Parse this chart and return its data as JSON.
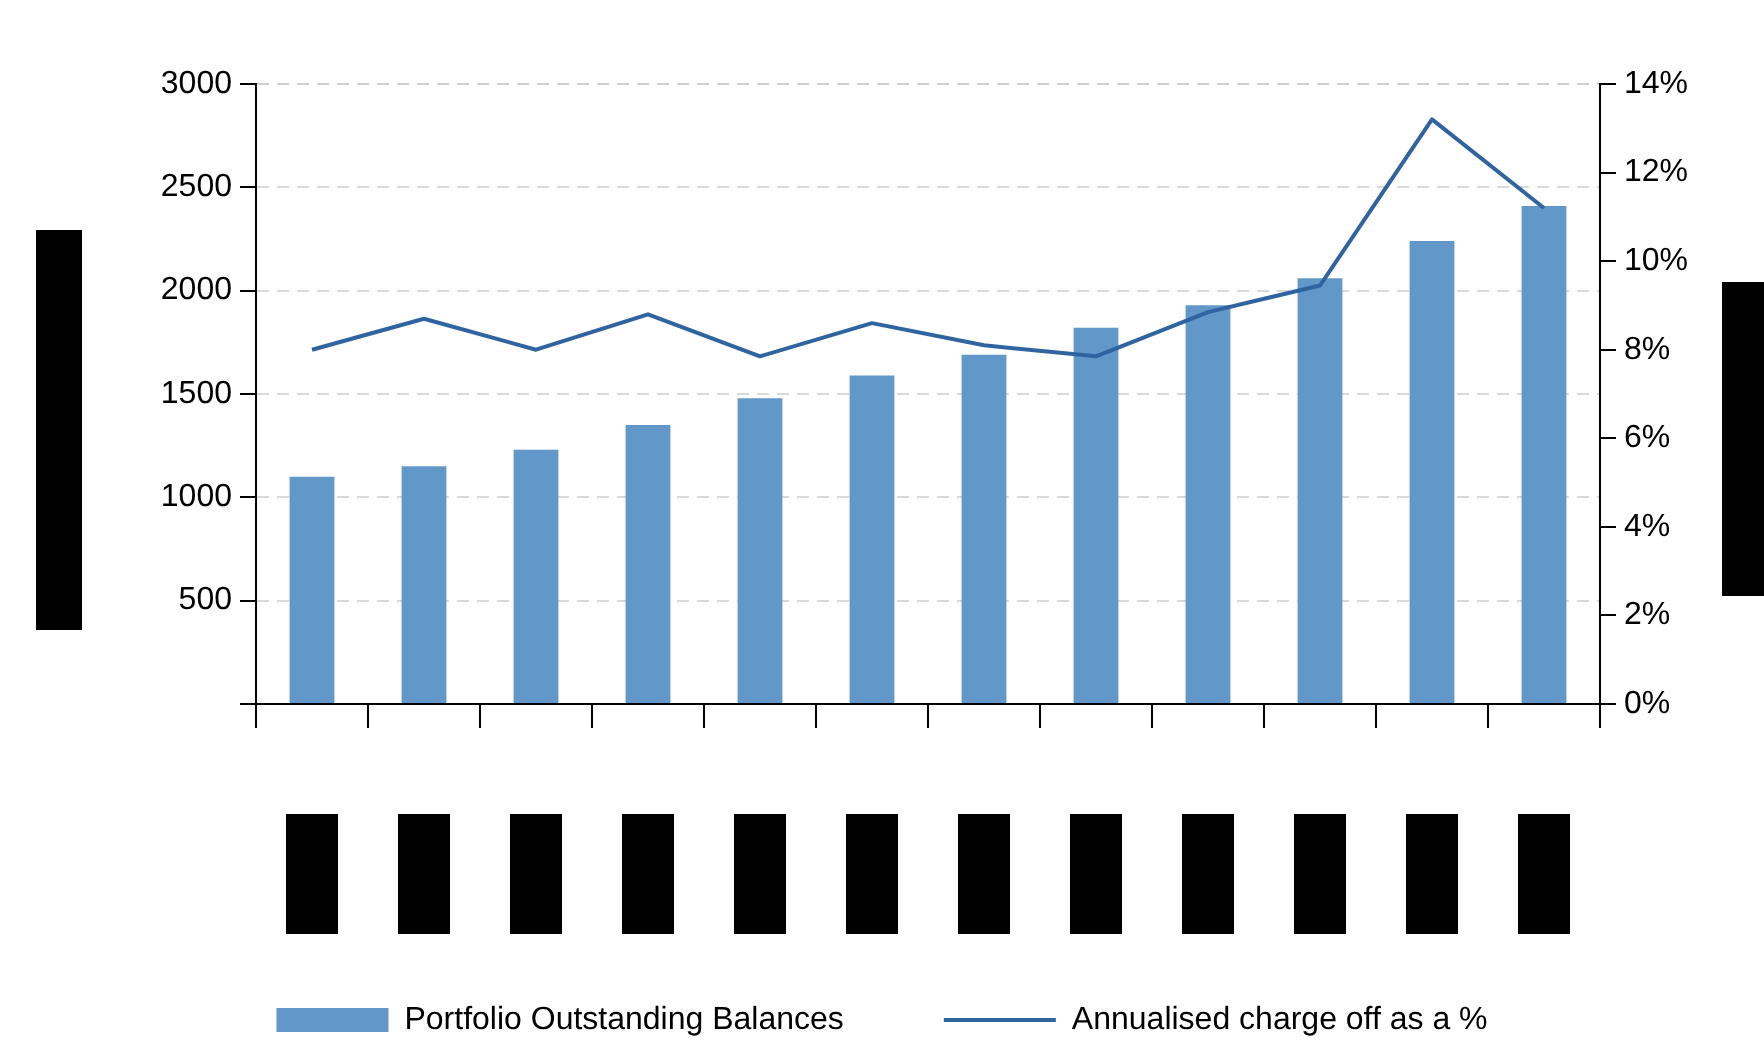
{
  "chart_data": {
    "type": "bar",
    "categories": [
      null,
      null,
      null,
      null,
      null,
      null,
      null,
      null,
      null,
      null,
      null,
      null
    ],
    "series": [
      {
        "name": "Portfolio Outstanding Balances",
        "color": "#6197c9",
        "values": [
          1100,
          1150,
          1230,
          1350,
          1480,
          1590,
          1690,
          1820,
          1930,
          2060,
          2240,
          2410
        ]
      },
      {
        "name": "Annualised charge off as a %",
        "type": "line",
        "axis": "y2",
        "color": "#2f64a0",
        "values": [
          8.0,
          8.7,
          8.0,
          8.8,
          7.85,
          8.6,
          8.1,
          7.85,
          8.85,
          9.45,
          13.2,
          11.2
        ]
      }
    ],
    "ylim": [
      0,
      3000
    ],
    "yticks": [
      {
        "value": 0,
        "label": null
      },
      500,
      1000,
      1500,
      2000,
      2500,
      3000
    ],
    "y2lim": [
      0,
      14
    ],
    "y2ticks": [
      {
        "value": 0,
        "label": "0%"
      },
      {
        "value": 2,
        "label": "2%"
      },
      {
        "value": 4,
        "label": "4%"
      },
      {
        "value": 6,
        "label": "6%"
      },
      {
        "value": 8,
        "label": "8%"
      },
      {
        "value": 10,
        "label": "10%"
      },
      {
        "value": 12,
        "label": "12%"
      },
      {
        "value": 14,
        "label": "14%"
      }
    ],
    "grid": "y",
    "legend": "bottom",
    "marker": "none",
    "line_style": "solid"
  }
}
